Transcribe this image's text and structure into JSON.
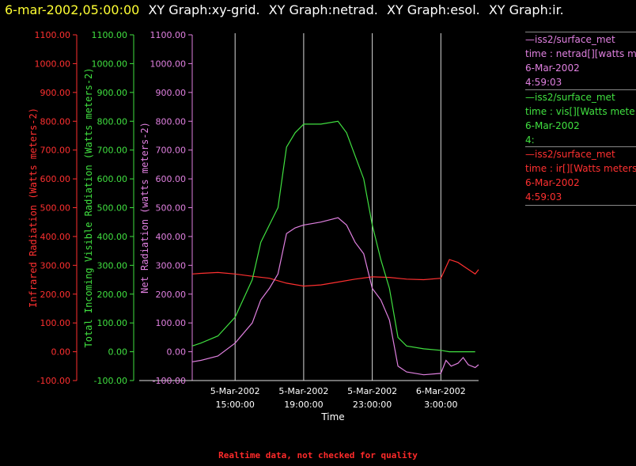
{
  "header": {
    "timestamp": "6-mar-2002,05:00:00",
    "graphs": [
      "XY Graph:xy-grid.",
      "XY Graph:netrad.",
      "XY Graph:esol.",
      "XY Graph:ir."
    ]
  },
  "legend": [
    {
      "line1": "—iss2/surface_met",
      "line2": "time : netrad[][watts me",
      "line3": "6-Mar-2002",
      "line4": "4:59:03",
      "color": "#e080e0"
    },
    {
      "line1": "—iss2/surface_met",
      "line2": "time : vis[][Watts mete",
      "line3": "6-Mar-2002",
      "line4": "4:",
      "color": "#40e040"
    },
    {
      "line1": "—iss2/surface_met",
      "line2": "time : ir[][Watts meters",
      "line3": "6-Mar-2002",
      "line4": "4:59:03",
      "color": "#ff3030"
    }
  ],
  "footer": "Realtime data, not checked for quality",
  "chart_data": {
    "type": "line",
    "xlabel": "Time",
    "x_ticks": [
      {
        "line1": "5-Mar-2002",
        "line2": "15:00:00"
      },
      {
        "line1": "5-Mar-2002",
        "line2": "19:00:00"
      },
      {
        "line1": "5-Mar-2002",
        "line2": "23:00:00"
      },
      {
        "line1": "6-Mar-2002",
        "line2": "3:00:00"
      }
    ],
    "x_tick_hours": [
      15,
      19,
      23,
      27
    ],
    "xlim_hours": [
      12.5,
      29.2
    ],
    "y_ticks": [
      "-100.00",
      "0.00",
      "100.00",
      "200.00",
      "300.00",
      "400.00",
      "500.00",
      "600.00",
      "700.00",
      "800.00",
      "900.00",
      "1000.00",
      "1100.00"
    ],
    "ylim": [
      -100,
      1100
    ],
    "grid": "vertical",
    "axes": [
      {
        "label": "Infrared Radiation (Watts meters-2)",
        "color": "#ff3030"
      },
      {
        "label": "Total Incoming Visible Radiation (Watts meters-2)",
        "color": "#40e040"
      },
      {
        "label": "Net Radiation (watts meters-2)",
        "color": "#e080e0"
      }
    ],
    "series": [
      {
        "color": "#ff3030",
        "x": [
          12.5,
          13,
          14,
          15,
          16,
          17,
          18,
          19,
          20,
          21,
          22,
          23,
          24,
          25,
          26,
          27,
          27.5,
          28,
          28.5,
          29,
          29.2
        ],
        "y": [
          270,
          272,
          275,
          270,
          262,
          255,
          238,
          228,
          232,
          242,
          252,
          260,
          258,
          252,
          250,
          255,
          320,
          310,
          290,
          270,
          285
        ]
      },
      {
        "color": "#40e040",
        "x": [
          12.5,
          13,
          14,
          15,
          16,
          16.5,
          17,
          17.5,
          18,
          18.5,
          19,
          20,
          21,
          21.5,
          22,
          22.5,
          23,
          23.5,
          24,
          24.5,
          25,
          26,
          27,
          27.5,
          28,
          28.5,
          29
        ],
        "y": [
          20,
          30,
          55,
          120,
          250,
          380,
          440,
          500,
          710,
          760,
          790,
          790,
          800,
          760,
          680,
          600,
          440,
          320,
          220,
          50,
          20,
          10,
          5,
          0,
          0,
          0,
          0
        ]
      },
      {
        "color": "#e080e0",
        "x": [
          12.5,
          13,
          14,
          15,
          16,
          16.5,
          17,
          17.5,
          18,
          18.5,
          19,
          20,
          21,
          21.5,
          22,
          22.5,
          23,
          23.5,
          24,
          24.5,
          25,
          26,
          27,
          27.3,
          27.6,
          28,
          28.3,
          28.6,
          29,
          29.2
        ],
        "y": [
          -35,
          -30,
          -15,
          30,
          100,
          180,
          220,
          270,
          410,
          430,
          440,
          450,
          465,
          440,
          380,
          340,
          220,
          180,
          110,
          -50,
          -70,
          -80,
          -75,
          -30,
          -50,
          -40,
          -20,
          -45,
          -55,
          -45
        ]
      }
    ]
  }
}
